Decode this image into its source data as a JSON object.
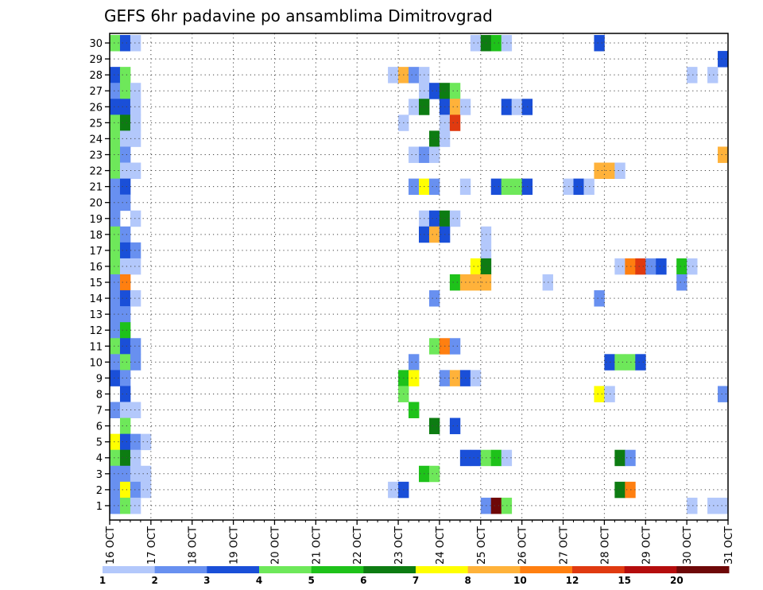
{
  "chart_data": {
    "type": "heatmap",
    "title": "GEFS 6hr padavine po ansamblima Dimitrovgrad",
    "x_labels": [
      "16 OCT",
      "17 OCT",
      "18 OCT",
      "19 OCT",
      "20 OCT",
      "21 OCT",
      "22 OCT",
      "23 OCT",
      "24 OCT",
      "25 OCT",
      "26 OCT",
      "27 OCT",
      "28 OCT",
      "29 OCT",
      "30 OCT",
      "31 OCT"
    ],
    "y_labels": [
      "1",
      "2",
      "3",
      "4",
      "5",
      "6",
      "7",
      "8",
      "9",
      "10",
      "11",
      "12",
      "13",
      "14",
      "15",
      "16",
      "17",
      "18",
      "19",
      "20",
      "21",
      "22",
      "23",
      "24",
      "25",
      "26",
      "27",
      "28",
      "29",
      "30"
    ],
    "ylim": [
      1,
      30
    ],
    "grid": true,
    "colorbar": {
      "labels": [
        "1",
        "2",
        "3",
        "4",
        "5",
        "6",
        "7",
        "8",
        "10",
        "12",
        "15",
        "20"
      ],
      "colors": [
        "#b3c8fb",
        "#6890f0",
        "#1a4fd8",
        "#6ee85a",
        "#1ec21a",
        "#0d7c12",
        "#ffff00",
        "#ffb23a",
        "#ff7f10",
        "#e03a10",
        "#b40c0c",
        "#6e0808"
      ]
    },
    "cells_note_units": "each cell = [day_offset_from_16_OCT_in_days, member, color_index]",
    "cells": [
      [
        0.0,
        30,
        4
      ],
      [
        0.25,
        30,
        3
      ],
      [
        0.5,
        30,
        1
      ],
      [
        8.75,
        30,
        1
      ],
      [
        9.0,
        30,
        6
      ],
      [
        9.25,
        30,
        5
      ],
      [
        9.5,
        30,
        1
      ],
      [
        11.75,
        30,
        3
      ],
      [
        14.75,
        29,
        3
      ],
      [
        0.0,
        28,
        3
      ],
      [
        0.25,
        28,
        4
      ],
      [
        6.75,
        28,
        1
      ],
      [
        7.0,
        28,
        8
      ],
      [
        7.25,
        28,
        2
      ],
      [
        7.5,
        28,
        1
      ],
      [
        14.0,
        28,
        1
      ],
      [
        14.5,
        28,
        1
      ],
      [
        0.0,
        27,
        2
      ],
      [
        0.25,
        27,
        4
      ],
      [
        0.5,
        27,
        1
      ],
      [
        7.5,
        27,
        1
      ],
      [
        7.75,
        27,
        3
      ],
      [
        8.0,
        27,
        6
      ],
      [
        8.25,
        27,
        4
      ],
      [
        0.0,
        26,
        3
      ],
      [
        0.25,
        26,
        3
      ],
      [
        0.5,
        26,
        1
      ],
      [
        7.25,
        26,
        1
      ],
      [
        7.5,
        26,
        6
      ],
      [
        8.0,
        26,
        3
      ],
      [
        8.25,
        26,
        8
      ],
      [
        8.5,
        26,
        1
      ],
      [
        9.5,
        26,
        3
      ],
      [
        9.75,
        26,
        1
      ],
      [
        10.0,
        26,
        3
      ],
      [
        0.0,
        25,
        4
      ],
      [
        0.25,
        25,
        6
      ],
      [
        0.5,
        25,
        1
      ],
      [
        7.0,
        25,
        1
      ],
      [
        8.0,
        25,
        1
      ],
      [
        8.25,
        25,
        10
      ],
      [
        0.0,
        24,
        4
      ],
      [
        0.25,
        24,
        1
      ],
      [
        0.5,
        24,
        1
      ],
      [
        7.75,
        24,
        6
      ],
      [
        8.0,
        24,
        1
      ],
      [
        0.0,
        23,
        4
      ],
      [
        0.25,
        23,
        2
      ],
      [
        7.25,
        23,
        1
      ],
      [
        7.5,
        23,
        2
      ],
      [
        7.75,
        23,
        1
      ],
      [
        14.75,
        23,
        8
      ],
      [
        0.0,
        22,
        4
      ],
      [
        0.25,
        22,
        1
      ],
      [
        0.5,
        22,
        1
      ],
      [
        11.75,
        22,
        8
      ],
      [
        12.0,
        22,
        8
      ],
      [
        12.25,
        22,
        1
      ],
      [
        0.0,
        21,
        2
      ],
      [
        0.25,
        21,
        3
      ],
      [
        7.25,
        21,
        2
      ],
      [
        7.5,
        21,
        7
      ],
      [
        7.75,
        21,
        2
      ],
      [
        8.5,
        21,
        1
      ],
      [
        9.25,
        21,
        3
      ],
      [
        9.5,
        21,
        4
      ],
      [
        9.75,
        21,
        4
      ],
      [
        10.0,
        21,
        3
      ],
      [
        11.0,
        21,
        1
      ],
      [
        11.25,
        21,
        3
      ],
      [
        11.5,
        21,
        1
      ],
      [
        0.0,
        20,
        2
      ],
      [
        0.25,
        20,
        2
      ],
      [
        0.0,
        19,
        2
      ],
      [
        0.5,
        19,
        1
      ],
      [
        7.5,
        19,
        1
      ],
      [
        7.75,
        19,
        3
      ],
      [
        8.0,
        19,
        6
      ],
      [
        8.25,
        19,
        1
      ],
      [
        0.0,
        18,
        4
      ],
      [
        0.25,
        18,
        2
      ],
      [
        7.5,
        18,
        3
      ],
      [
        7.75,
        18,
        8
      ],
      [
        8.0,
        18,
        3
      ],
      [
        9.0,
        18,
        1
      ],
      [
        0.0,
        17,
        4
      ],
      [
        0.25,
        17,
        3
      ],
      [
        0.5,
        17,
        2
      ],
      [
        9.0,
        17,
        1
      ],
      [
        0.0,
        16,
        4
      ],
      [
        0.25,
        16,
        1
      ],
      [
        0.5,
        16,
        1
      ],
      [
        8.75,
        16,
        7
      ],
      [
        9.0,
        16,
        6
      ],
      [
        12.25,
        16,
        1
      ],
      [
        12.5,
        16,
        9
      ],
      [
        12.75,
        16,
        10
      ],
      [
        13.0,
        16,
        2
      ],
      [
        13.25,
        16,
        3
      ],
      [
        13.75,
        16,
        5
      ],
      [
        14.0,
        16,
        1
      ],
      [
        0.0,
        15,
        2
      ],
      [
        0.25,
        15,
        9
      ],
      [
        8.25,
        15,
        5
      ],
      [
        8.5,
        15,
        8
      ],
      [
        8.75,
        15,
        8
      ],
      [
        9.0,
        15,
        8
      ],
      [
        10.5,
        15,
        1
      ],
      [
        13.75,
        15,
        2
      ],
      [
        0.0,
        14,
        2
      ],
      [
        0.25,
        14,
        3
      ],
      [
        0.5,
        14,
        1
      ],
      [
        7.75,
        14,
        2
      ],
      [
        11.75,
        14,
        2
      ],
      [
        0.0,
        13,
        2
      ],
      [
        0.25,
        13,
        2
      ],
      [
        0.0,
        12,
        2
      ],
      [
        0.25,
        12,
        5
      ],
      [
        0.0,
        11,
        4
      ],
      [
        0.25,
        11,
        3
      ],
      [
        0.5,
        11,
        2
      ],
      [
        7.75,
        11,
        4
      ],
      [
        8.0,
        11,
        9
      ],
      [
        8.25,
        11,
        2
      ],
      [
        0.0,
        10,
        2
      ],
      [
        0.25,
        10,
        4
      ],
      [
        0.5,
        10,
        2
      ],
      [
        7.25,
        10,
        2
      ],
      [
        12.0,
        10,
        3
      ],
      [
        12.25,
        10,
        4
      ],
      [
        12.5,
        10,
        4
      ],
      [
        12.75,
        10,
        3
      ],
      [
        0.0,
        9,
        3
      ],
      [
        0.25,
        9,
        2
      ],
      [
        7.0,
        9,
        5
      ],
      [
        7.25,
        9,
        7
      ],
      [
        8.0,
        9,
        2
      ],
      [
        8.25,
        9,
        8
      ],
      [
        8.5,
        9,
        3
      ],
      [
        8.75,
        9,
        1
      ],
      [
        0.25,
        8,
        3
      ],
      [
        7.0,
        8,
        4
      ],
      [
        11.75,
        8,
        7
      ],
      [
        12.0,
        8,
        1
      ],
      [
        14.75,
        8,
        2
      ],
      [
        0.0,
        7,
        2
      ],
      [
        0.25,
        7,
        1
      ],
      [
        0.5,
        7,
        1
      ],
      [
        7.25,
        7,
        5
      ],
      [
        0.25,
        6,
        4
      ],
      [
        7.75,
        6,
        6
      ],
      [
        8.25,
        6,
        3
      ],
      [
        0.0,
        5,
        7
      ],
      [
        0.25,
        5,
        3
      ],
      [
        0.5,
        5,
        2
      ],
      [
        0.75,
        5,
        1
      ],
      [
        0.0,
        4,
        4
      ],
      [
        0.25,
        4,
        6
      ],
      [
        0.5,
        4,
        1
      ],
      [
        8.5,
        4,
        3
      ],
      [
        8.75,
        4,
        3
      ],
      [
        9.0,
        4,
        4
      ],
      [
        9.25,
        4,
        5
      ],
      [
        9.5,
        4,
        1
      ],
      [
        12.25,
        4,
        6
      ],
      [
        12.5,
        4,
        2
      ],
      [
        0.0,
        3,
        2
      ],
      [
        0.25,
        3,
        2
      ],
      [
        0.5,
        3,
        1
      ],
      [
        0.75,
        3,
        1
      ],
      [
        7.5,
        3,
        5
      ],
      [
        7.75,
        3,
        4
      ],
      [
        0.0,
        2,
        2
      ],
      [
        0.25,
        2,
        7
      ],
      [
        0.5,
        2,
        2
      ],
      [
        0.75,
        2,
        1
      ],
      [
        6.75,
        2,
        1
      ],
      [
        7.0,
        2,
        3
      ],
      [
        12.25,
        2,
        6
      ],
      [
        12.5,
        2,
        9
      ],
      [
        0.0,
        1,
        2
      ],
      [
        0.25,
        1,
        4
      ],
      [
        0.5,
        1,
        1
      ],
      [
        9.0,
        1,
        2
      ],
      [
        9.25,
        1,
        12
      ],
      [
        9.5,
        1,
        4
      ],
      [
        14.0,
        1,
        1
      ],
      [
        14.5,
        1,
        1
      ],
      [
        14.75,
        1,
        1
      ]
    ]
  }
}
